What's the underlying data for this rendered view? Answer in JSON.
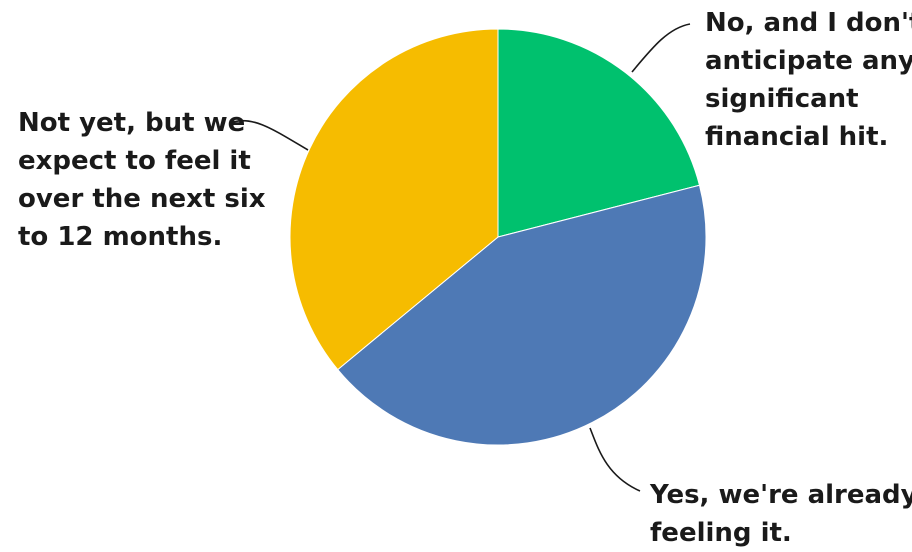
{
  "chart_data": {
    "type": "pie",
    "slices": [
      {
        "label_lines": [
          "No, and I don't",
          "anticipate any",
          "significant",
          "financial hit."
        ],
        "value": 21,
        "color": "#00c16e"
      },
      {
        "label_lines": [
          "Yes, we're already",
          "feeling it."
        ],
        "value": 43,
        "color": "#4e79b5"
      },
      {
        "label_lines": [
          "Not yet, but we",
          "expect to feel it",
          "over the next six",
          "to 12 months."
        ],
        "value": 36,
        "color": "#f6bc00"
      }
    ]
  }
}
